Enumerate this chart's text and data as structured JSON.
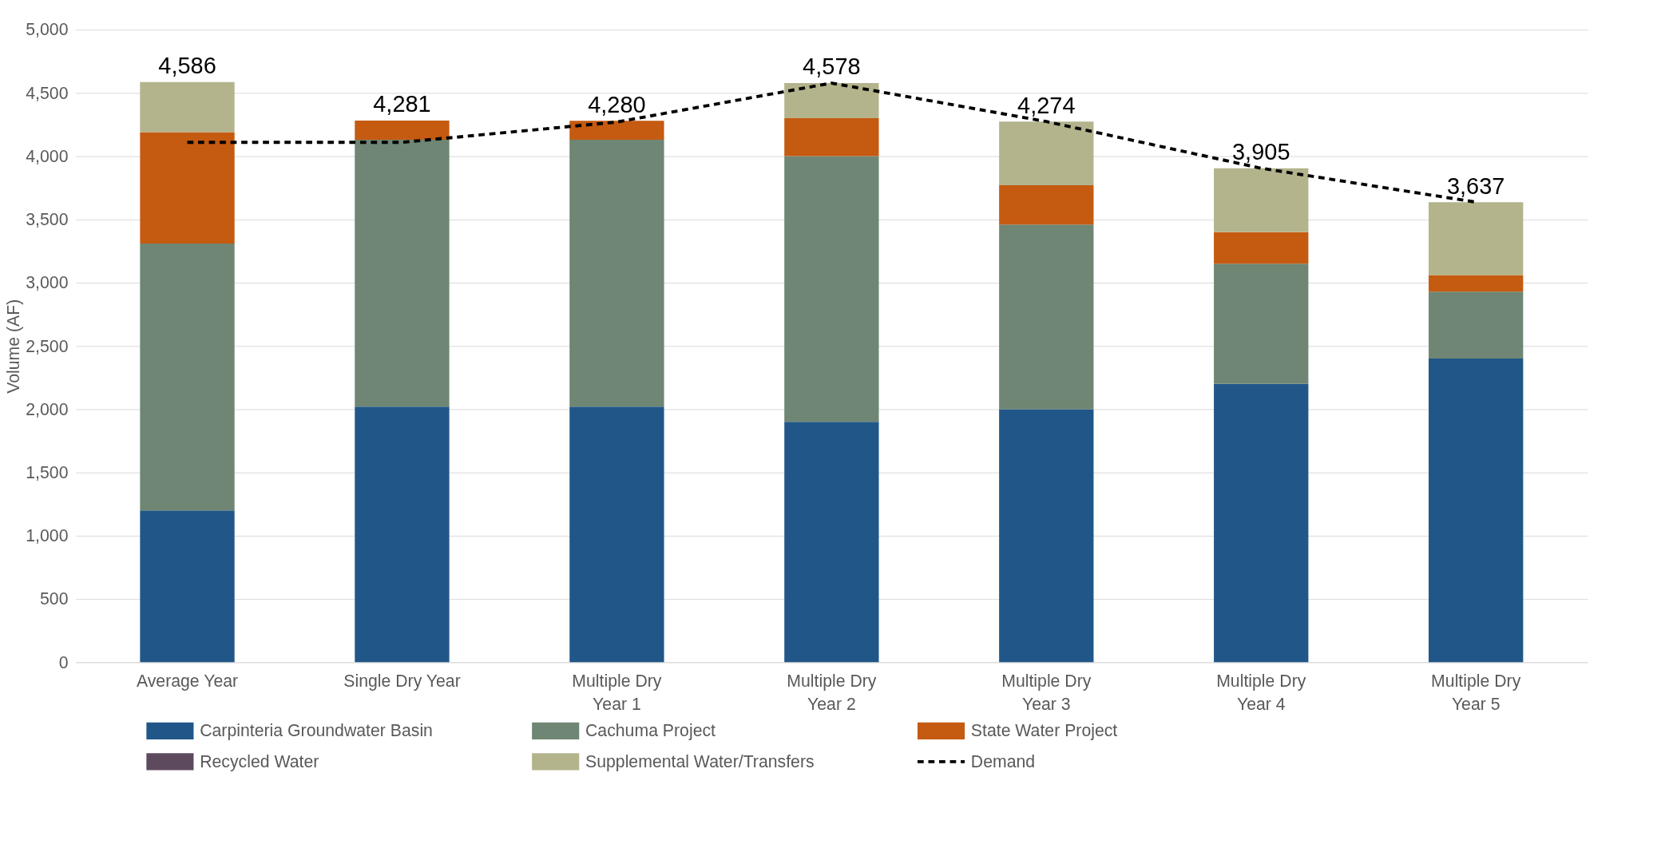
{
  "chart_data": {
    "type": "bar",
    "stacked": true,
    "ylabel": "Volume (AF)",
    "categories": [
      "Average Year",
      "Single Dry Year",
      "Multiple Dry Year 1",
      "Multiple Dry Year 2",
      "Multiple Dry Year 3",
      "Multiple Dry Year 4",
      "Multiple Dry Year 5"
    ],
    "series": [
      {
        "name": "Carpinteria Groundwater Basin",
        "color": "#215788",
        "values": [
          1200,
          2020,
          2020,
          1900,
          2000,
          2200,
          2400
        ]
      },
      {
        "name": "Cachuma Project",
        "color": "#6e8673",
        "values": [
          2110,
          2110,
          2110,
          2100,
          1460,
          950,
          530
        ]
      },
      {
        "name": "State Water Project",
        "color": "#c55a11",
        "values": [
          880,
          151,
          150,
          300,
          310,
          250,
          130
        ]
      },
      {
        "name": "Recycled Water",
        "color": "#5e4a5e",
        "values": [
          0,
          0,
          0,
          0,
          0,
          0,
          0
        ]
      },
      {
        "name": "Supplemental Water/Transfers",
        "color": "#b3b48c",
        "values": [
          396,
          0,
          0,
          278,
          504,
          505,
          577
        ]
      },
      {
        "name": "Demand",
        "type": "line",
        "color": "#000000",
        "line_style": "dashed",
        "values": [
          4110,
          4110,
          4270,
          4578,
          4274,
          3905,
          3637
        ]
      }
    ],
    "totals": [
      "4,586",
      "4,281",
      "4,280",
      "4,578",
      "4,274",
      "3,905",
      "3,637"
    ],
    "ylim": [
      0,
      5000
    ],
    "yticks": [
      0,
      500,
      {
        "value": 1000,
        "label": "1,000"
      },
      {
        "value": 1500,
        "label": "1,500"
      },
      {
        "value": 2000,
        "label": "2,000"
      },
      {
        "value": 2500,
        "label": "2,500"
      },
      {
        "value": 3000,
        "label": "3,000"
      },
      {
        "value": 3500,
        "label": "3,500"
      },
      {
        "value": 4000,
        "label": "4,000"
      },
      {
        "value": 4500,
        "label": "4,500"
      },
      {
        "value": 5000,
        "label": "5,000"
      }
    ],
    "grid": "y",
    "legend": "bottom"
  }
}
